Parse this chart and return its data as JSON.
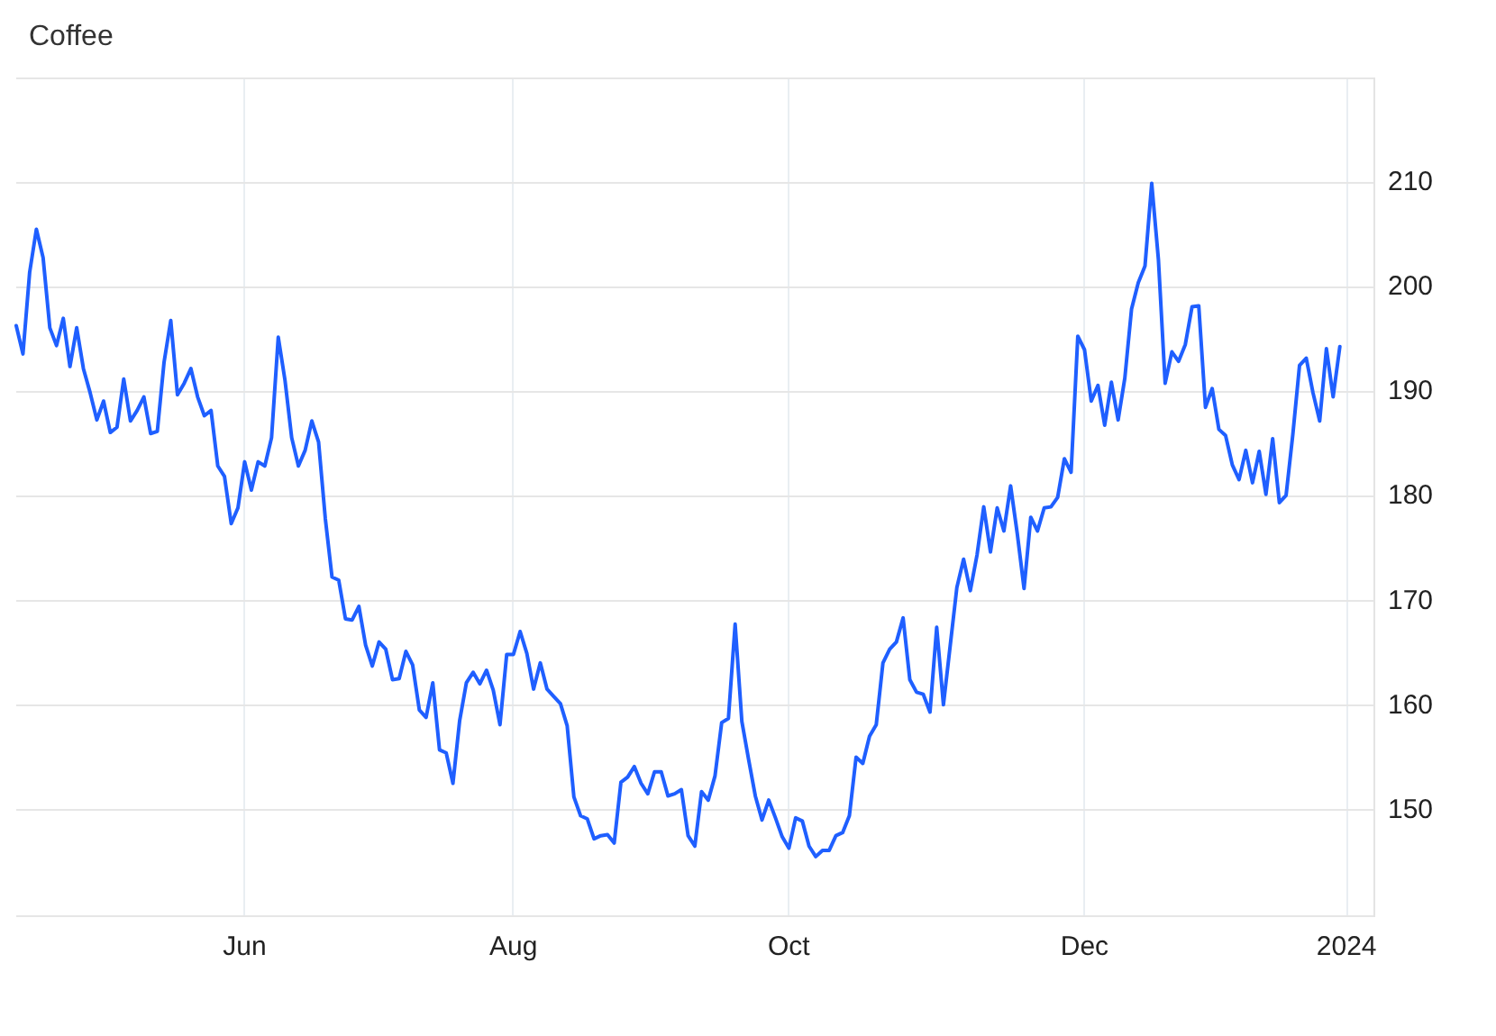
{
  "chart_data": {
    "type": "line",
    "title": "Coffee",
    "categories": [
      null,
      null,
      null,
      null,
      null,
      null,
      null,
      null,
      null,
      null,
      null,
      null,
      null,
      null,
      null,
      null,
      null,
      null,
      null,
      null,
      null,
      null,
      null,
      null,
      null,
      null,
      null,
      null,
      null,
      null,
      null,
      null,
      null,
      null,
      "Jun",
      null,
      null,
      null,
      null,
      null,
      null,
      null,
      null,
      null,
      null,
      null,
      null,
      null,
      null,
      null,
      null,
      null,
      null,
      null,
      null,
      null,
      null,
      null,
      null,
      null,
      null,
      null,
      null,
      null,
      null,
      null,
      null,
      null,
      null,
      null,
      null,
      null,
      null,
      null,
      "Aug",
      null,
      null,
      null,
      null,
      null,
      null,
      null,
      null,
      null,
      null,
      null,
      null,
      null,
      null,
      null,
      null,
      null,
      null,
      null,
      null,
      null,
      null,
      null,
      null,
      null,
      null,
      null,
      null,
      null,
      null,
      null,
      null,
      null,
      null,
      null,
      null,
      null,
      null,
      null,
      null,
      "Oct",
      null,
      null,
      null,
      null,
      null,
      null,
      null,
      null,
      null,
      null,
      null,
      null,
      null,
      null,
      null,
      null,
      null,
      null,
      null,
      null,
      null,
      null,
      null,
      null,
      null,
      null,
      null,
      null,
      null,
      null,
      null,
      null,
      null,
      null,
      null,
      null,
      null,
      null,
      null,
      null,
      null,
      null,
      null,
      "Dec",
      null,
      null,
      null,
      null,
      null,
      null,
      null,
      null,
      null,
      null,
      null,
      null,
      null,
      null,
      null,
      null,
      null,
      null,
      null,
      null,
      null,
      null,
      null,
      null,
      null,
      null,
      null,
      null,
      null,
      null,
      null,
      null,
      null,
      null,
      null,
      null,
      null,
      null,
      "2024",
      null,
      null,
      null,
      null
    ],
    "series": [
      {
        "color": "#1f5fff",
        "values": [
          196.3,
          193.6,
          201.4,
          205.5,
          202.8,
          196.1,
          194.4,
          197.0,
          192.4,
          196.1,
          192.2,
          189.9,
          187.3,
          189.1,
          186.1,
          186.6,
          191.2,
          187.2,
          188.2,
          189.5,
          186.0,
          186.2,
          192.8,
          196.8,
          189.7,
          190.8,
          192.2,
          189.5,
          187.7,
          188.2,
          182.9,
          181.9,
          177.4,
          178.9,
          183.3,
          180.6,
          183.3,
          182.9,
          185.6,
          195.2,
          191.1,
          185.6,
          182.9,
          184.4,
          187.2,
          185.2,
          177.9,
          172.3,
          172.0,
          168.3,
          168.2,
          169.5,
          165.8,
          163.8,
          166.1,
          165.4,
          162.5,
          162.6,
          165.2,
          163.9,
          159.6,
          158.9,
          162.2,
          155.8,
          155.5,
          152.6,
          158.6,
          162.2,
          163.2,
          162.1,
          163.4,
          161.5,
          158.2,
          164.9,
          164.9,
          167.1,
          165.0,
          161.6,
          164.1,
          161.6,
          160.9,
          160.2,
          158.1,
          151.3,
          149.5,
          149.2,
          147.3,
          147.6,
          147.7,
          146.9,
          152.7,
          153.2,
          154.2,
          152.6,
          151.6,
          153.7,
          153.7,
          151.4,
          151.6,
          152.0,
          147.6,
          146.6,
          151.8,
          151.0,
          153.3,
          158.4,
          158.8,
          167.8,
          158.5,
          154.9,
          151.4,
          149.1,
          151.0,
          149.3,
          147.5,
          146.4,
          149.3,
          149.0,
          146.6,
          145.6,
          146.2,
          146.2,
          147.6,
          147.9,
          149.5,
          155.1,
          154.5,
          157.1,
          158.2,
          164.1,
          165.4,
          166.1,
          168.4,
          162.5,
          161.3,
          161.1,
          159.4,
          167.5,
          160.1,
          165.7,
          171.3,
          174.0,
          171.0,
          174.4,
          179.0,
          174.7,
          178.9,
          176.7,
          181.0,
          176.4,
          171.2,
          178.0,
          176.7,
          178.9,
          179.0,
          179.9,
          183.6,
          182.3,
          195.3,
          194.0,
          189.1,
          190.6,
          186.8,
          190.9,
          187.3,
          191.3,
          197.9,
          200.4,
          202.0,
          209.9,
          202.6,
          190.8,
          193.8,
          192.9,
          194.5,
          198.1,
          198.2,
          188.5,
          190.3,
          186.4,
          185.8,
          183.0,
          181.6,
          184.4,
          181.3,
          184.3,
          180.2,
          185.5,
          179.4,
          180.1,
          185.9,
          192.5,
          193.2,
          189.9,
          187.2,
          194.1,
          189.5,
          194.3,
          null,
          null,
          null,
          null,
          null
        ]
      }
    ],
    "ylim": [
      140,
      220
    ],
    "yticks": [
      {
        "value": 140,
        "label": null
      },
      150,
      160,
      170,
      180,
      190,
      200,
      210,
      {
        "value": 220,
        "label": null
      }
    ],
    "grid": true,
    "marker": "none",
    "line_style": "solid"
  }
}
